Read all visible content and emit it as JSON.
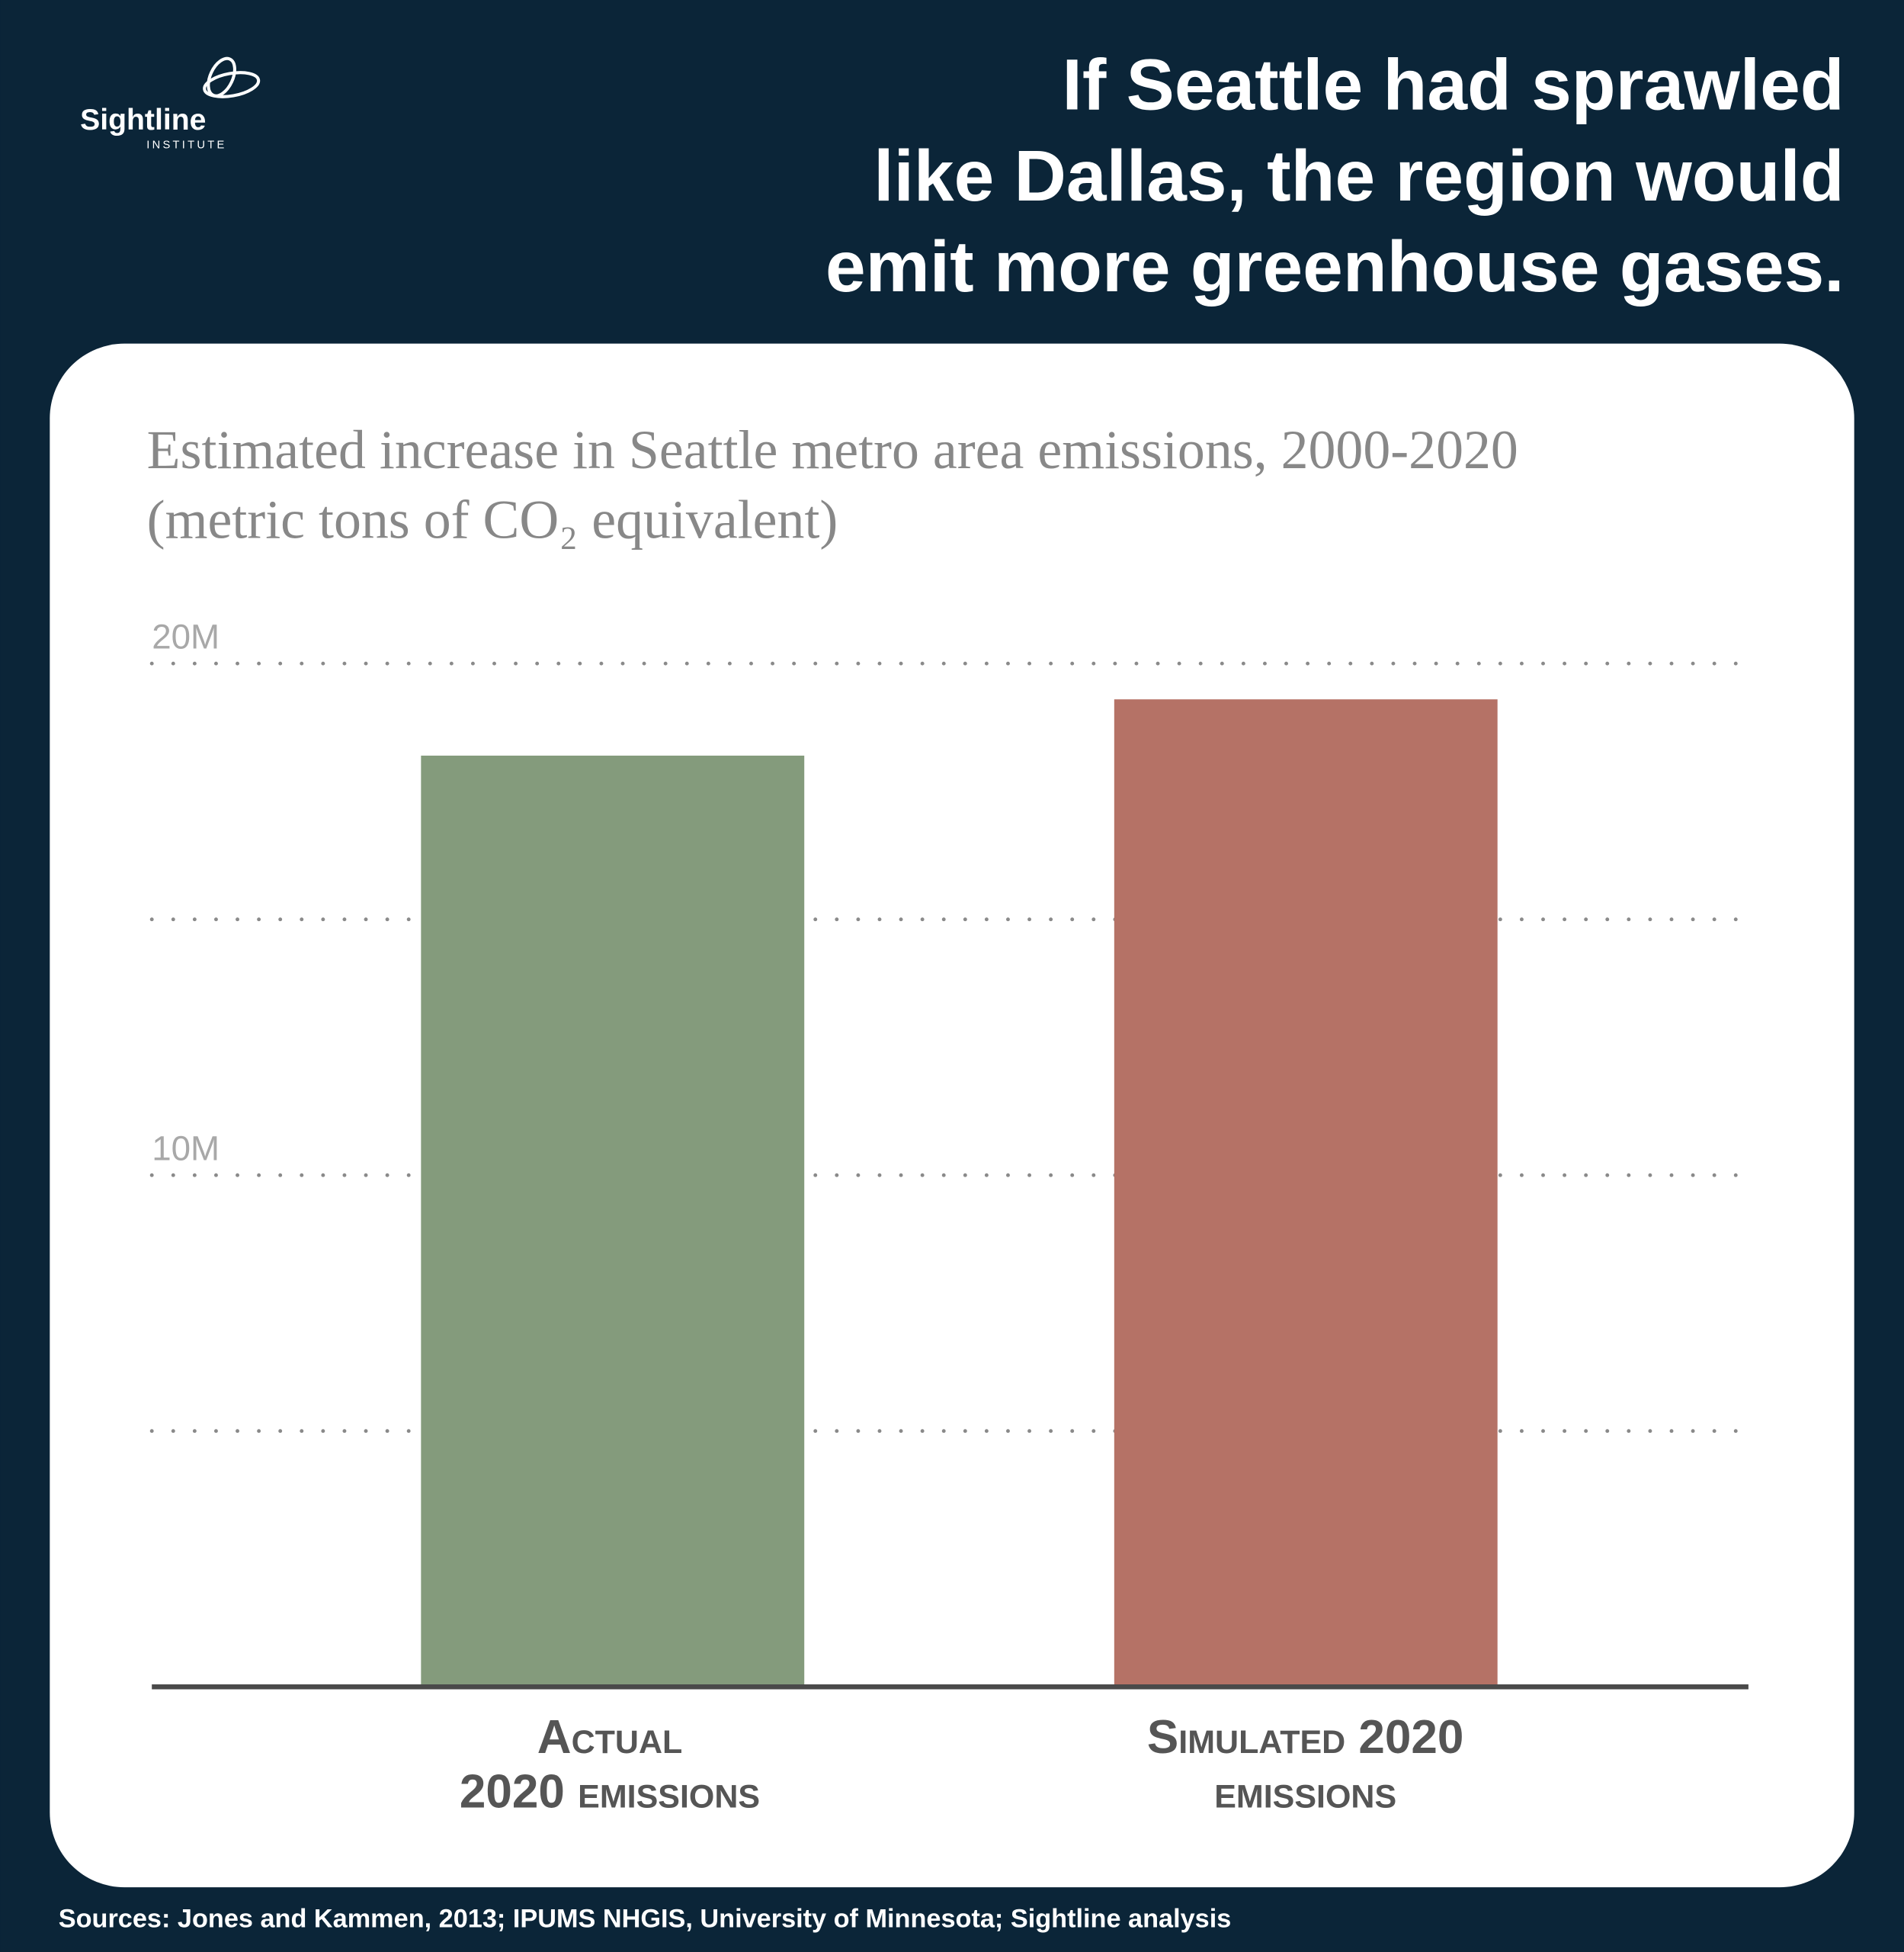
{
  "logo": {
    "name": "Sightline",
    "sub": "INSTITUTE"
  },
  "chart_data": {
    "type": "bar",
    "title": "If Seattle had sprawled\nlike Dallas, the region would\nemit more greenhouse gases.",
    "subtitle": "Estimated increase in Seattle metro area emissions, 2000-2020\n(metric tons of CO₂ equivalent)",
    "categories": [
      "Actual\n2020 emissions",
      "Simulated 2020\nemissions"
    ],
    "series": [
      {
        "name": "Emissions",
        "values": [
          18200000,
          19300000
        ],
        "colors": [
          "#849b7c",
          "#b57266"
        ]
      }
    ],
    "ylim": [
      0,
      20000000
    ],
    "yticks": [
      {
        "value": 10000000,
        "label": "10M"
      },
      {
        "value": 20000000,
        "label": "20M"
      }
    ],
    "minor_yticks": [
      5000000,
      15000000
    ],
    "grid": true,
    "source": "Sources: Jones and Kammen, 2013; IPUMS NHGIS, University of Minnesota; Sightline analysis"
  }
}
